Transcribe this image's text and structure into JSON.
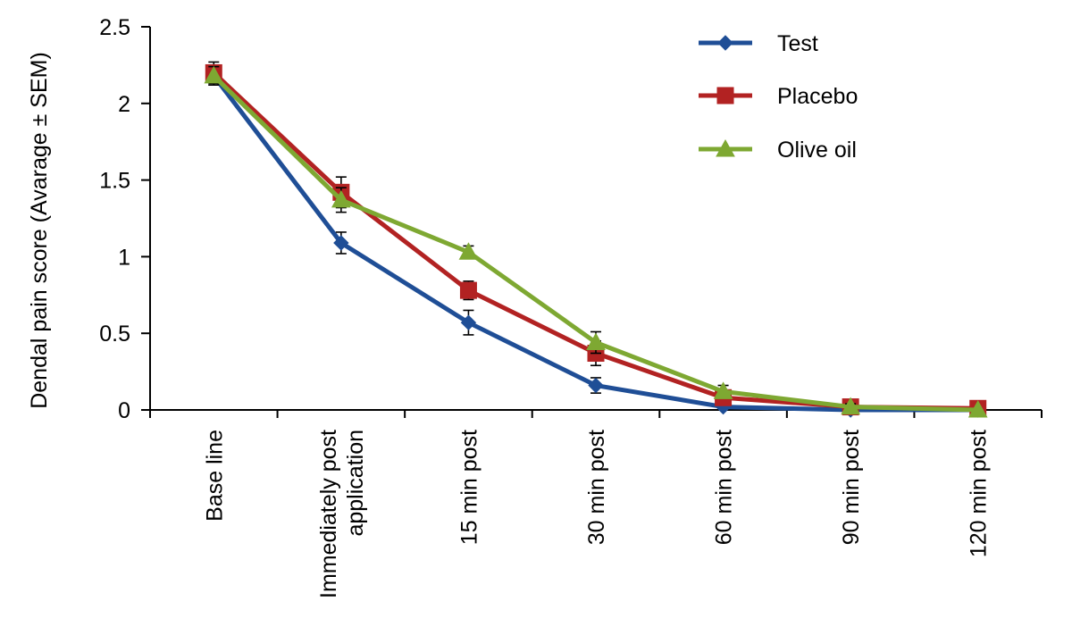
{
  "chart_data": {
    "type": "line",
    "title": "",
    "xlabel": "",
    "ylabel": "Dendal pain score (Avarage ± SEM)",
    "ylim": [
      0,
      2.5
    ],
    "yticks": [
      "0",
      "0.5",
      "1",
      "1.5",
      "2",
      "2.5"
    ],
    "categories": [
      [
        "Base line"
      ],
      [
        "Immediately post",
        "application"
      ],
      [
        "15 min post"
      ],
      [
        "30 min post"
      ],
      [
        "60 min post"
      ],
      [
        "90 min post"
      ],
      [
        "120 min post"
      ]
    ],
    "legend_position": "top-right",
    "grid": false,
    "series": [
      {
        "name": "Test",
        "color": "#1f4e96",
        "marker": "diamond",
        "values": [
          2.18,
          1.09,
          0.57,
          0.16,
          0.02,
          0.0,
          0.0
        ],
        "sem": [
          0.06,
          0.07,
          0.08,
          0.05,
          0.02,
          0.0,
          0.0
        ]
      },
      {
        "name": "Placebo",
        "color": "#b22222",
        "marker": "square",
        "values": [
          2.2,
          1.42,
          0.78,
          0.37,
          0.08,
          0.02,
          0.01
        ],
        "sem": [
          0.07,
          0.1,
          0.06,
          0.08,
          0.04,
          0.02,
          0.01
        ]
      },
      {
        "name": "Olive oil",
        "color": "#7ea832",
        "marker": "triangle",
        "values": [
          2.18,
          1.37,
          1.03,
          0.44,
          0.12,
          0.02,
          0.0
        ],
        "sem": [
          0.06,
          0.08,
          0.04,
          0.07,
          0.04,
          0.02,
          0.0
        ]
      }
    ]
  }
}
